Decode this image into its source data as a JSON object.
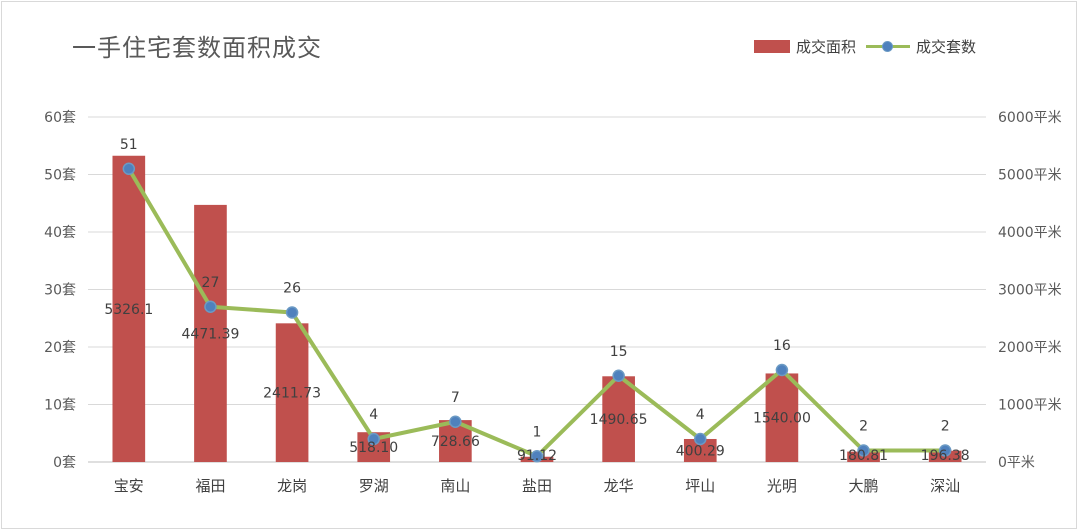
{
  "chart_data": {
    "type": "bar+line",
    "title": "一手住宅套数面积成交",
    "categories": [
      "宝安",
      "福田",
      "龙岗",
      "罗湖",
      "南山",
      "盐田",
      "龙华",
      "坪山",
      "光明",
      "大鹏",
      "深汕"
    ],
    "series": [
      {
        "name": "成交面积",
        "type": "bar",
        "axis": "right",
        "values": [
          5326.1,
          4471.39,
          2411.73,
          518.1,
          728.66,
          91.12,
          1490.65,
          400.29,
          1540.0,
          180.81,
          196.38
        ],
        "labels": [
          "5326.1",
          "4471.39",
          "2411.73",
          "518.10",
          "728.66",
          "91.12",
          "1490.65",
          "400.29",
          "1540.00",
          "180.81",
          "196.38"
        ],
        "color": "#c0504d"
      },
      {
        "name": "成交套数",
        "type": "line",
        "axis": "left",
        "values": [
          51,
          27,
          26,
          4,
          7,
          1,
          15,
          4,
          16,
          2,
          2
        ],
        "labels": [
          "51",
          "27",
          "26",
          "4",
          "7",
          "1",
          "15",
          "4",
          "16",
          "2",
          "2"
        ],
        "color": "#9bbb59",
        "marker_color": "#4f81bd"
      }
    ],
    "y_left": {
      "min": 0,
      "max": 60,
      "step": 10,
      "unit": "套",
      "ticks": [
        "0套",
        "10套",
        "20套",
        "30套",
        "40套",
        "50套",
        "60套"
      ]
    },
    "y_right": {
      "min": 0,
      "max": 6000,
      "step": 1000,
      "unit": "平米",
      "ticks": [
        "0平米",
        "1000平米",
        "2000平米",
        "3000平米",
        "4000平米",
        "5000平米",
        "6000平米"
      ]
    },
    "grid": true,
    "legend_position": "top-right"
  }
}
